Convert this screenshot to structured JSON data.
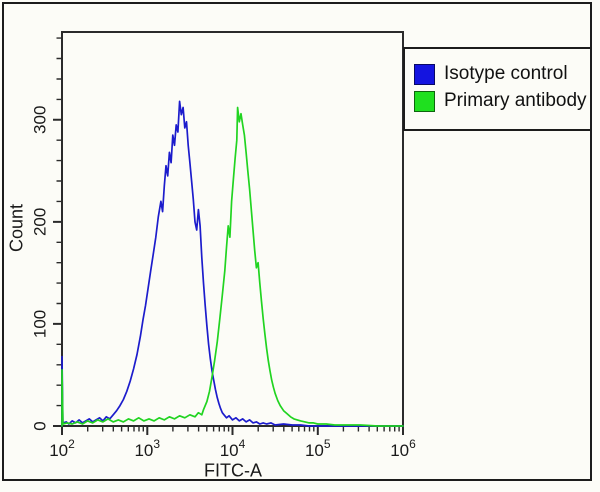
{
  "chart_data": {
    "type": "line",
    "title": "",
    "xlabel": "FITC-A",
    "ylabel": "Count",
    "grid": false,
    "legend_position": "top-right-outside",
    "x_axis": {
      "scale": "log10",
      "min_exponent": 2,
      "max_exponent": 6,
      "tick_label_base": "10",
      "tick_exponents": [
        2,
        3,
        4,
        5,
        6
      ]
    },
    "y_axis": {
      "min": 0,
      "max": 386,
      "major_tick_interval": 100,
      "minor_tick_interval": 20,
      "major_tick_labels": [
        "0",
        "100",
        "200",
        "300"
      ]
    },
    "series": [
      {
        "name": "Isotype control",
        "color": "#1c1ccc",
        "peak": {
          "x_log10": 3.38,
          "count": 318
        },
        "points": [
          [
            2.0,
            0
          ],
          [
            2.0,
            68
          ],
          [
            2.01,
            3
          ],
          [
            2.05,
            4
          ],
          [
            2.08,
            2
          ],
          [
            2.12,
            5
          ],
          [
            2.16,
            3
          ],
          [
            2.2,
            6
          ],
          [
            2.24,
            3
          ],
          [
            2.28,
            5
          ],
          [
            2.32,
            7
          ],
          [
            2.36,
            4
          ],
          [
            2.4,
            6
          ],
          [
            2.44,
            8
          ],
          [
            2.48,
            5
          ],
          [
            2.52,
            9
          ],
          [
            2.56,
            7
          ],
          [
            2.6,
            11
          ],
          [
            2.64,
            15
          ],
          [
            2.68,
            20
          ],
          [
            2.72,
            26
          ],
          [
            2.76,
            34
          ],
          [
            2.8,
            44
          ],
          [
            2.84,
            56
          ],
          [
            2.88,
            70
          ],
          [
            2.92,
            88
          ],
          [
            2.95,
            104
          ],
          [
            2.98,
            118
          ],
          [
            3.01,
            135
          ],
          [
            3.04,
            152
          ],
          [
            3.07,
            168
          ],
          [
            3.1,
            185
          ],
          [
            3.13,
            205
          ],
          [
            3.16,
            220
          ],
          [
            3.18,
            210
          ],
          [
            3.2,
            235
          ],
          [
            3.22,
            255
          ],
          [
            3.24,
            245
          ],
          [
            3.26,
            268
          ],
          [
            3.28,
            258
          ],
          [
            3.3,
            285
          ],
          [
            3.32,
            275
          ],
          [
            3.34,
            295
          ],
          [
            3.36,
            288
          ],
          [
            3.38,
            318
          ],
          [
            3.4,
            305
          ],
          [
            3.42,
            312
          ],
          [
            3.44,
            292
          ],
          [
            3.46,
            298
          ],
          [
            3.48,
            275
          ],
          [
            3.5,
            258
          ],
          [
            3.52,
            240
          ],
          [
            3.54,
            222
          ],
          [
            3.56,
            200
          ],
          [
            3.58,
            192
          ],
          [
            3.6,
            212
          ],
          [
            3.62,
            196
          ],
          [
            3.64,
            165
          ],
          [
            3.66,
            140
          ],
          [
            3.68,
            118
          ],
          [
            3.7,
            98
          ],
          [
            3.72,
            80
          ],
          [
            3.74,
            66
          ],
          [
            3.76,
            54
          ],
          [
            3.78,
            45
          ],
          [
            3.8,
            36
          ],
          [
            3.82,
            28
          ],
          [
            3.84,
            22
          ],
          [
            3.86,
            17
          ],
          [
            3.88,
            13
          ],
          [
            3.9,
            11
          ],
          [
            3.93,
            8
          ],
          [
            3.96,
            10
          ],
          [
            4.0,
            6
          ],
          [
            4.04,
            8
          ],
          [
            4.08,
            5
          ],
          [
            4.12,
            7
          ],
          [
            4.16,
            4
          ],
          [
            4.2,
            6
          ],
          [
            4.24,
            3
          ],
          [
            4.28,
            4
          ],
          [
            4.32,
            2
          ],
          [
            4.36,
            3
          ],
          [
            4.4,
            2
          ],
          [
            4.45,
            3
          ],
          [
            4.5,
            1
          ],
          [
            4.6,
            2
          ],
          [
            4.7,
            1
          ],
          [
            4.8,
            1
          ],
          [
            4.9,
            0
          ],
          [
            5.2,
            0
          ],
          [
            6.0,
            0
          ]
        ]
      },
      {
        "name": "Primary antibody",
        "color": "#21d421",
        "peak": {
          "x_log10": 4.06,
          "count": 312
        },
        "points": [
          [
            2.0,
            0
          ],
          [
            2.0,
            55
          ],
          [
            2.01,
            2
          ],
          [
            2.06,
            3
          ],
          [
            2.12,
            2
          ],
          [
            2.18,
            4
          ],
          [
            2.24,
            2
          ],
          [
            2.3,
            5
          ],
          [
            2.36,
            3
          ],
          [
            2.42,
            6
          ],
          [
            2.48,
            4
          ],
          [
            2.54,
            7
          ],
          [
            2.6,
            4
          ],
          [
            2.66,
            6
          ],
          [
            2.72,
            4
          ],
          [
            2.78,
            7
          ],
          [
            2.84,
            5
          ],
          [
            2.9,
            8
          ],
          [
            2.96,
            5
          ],
          [
            3.02,
            7
          ],
          [
            3.08,
            5
          ],
          [
            3.14,
            8
          ],
          [
            3.2,
            6
          ],
          [
            3.26,
            9
          ],
          [
            3.32,
            7
          ],
          [
            3.38,
            10
          ],
          [
            3.44,
            8
          ],
          [
            3.5,
            11
          ],
          [
            3.56,
            9
          ],
          [
            3.6,
            13
          ],
          [
            3.64,
            11
          ],
          [
            3.66,
            16
          ],
          [
            3.7,
            24
          ],
          [
            3.73,
            34
          ],
          [
            3.76,
            48
          ],
          [
            3.79,
            64
          ],
          [
            3.82,
            82
          ],
          [
            3.85,
            104
          ],
          [
            3.88,
            128
          ],
          [
            3.91,
            152
          ],
          [
            3.93,
            175
          ],
          [
            3.95,
            196
          ],
          [
            3.97,
            185
          ],
          [
            3.99,
            220
          ],
          [
            4.01,
            242
          ],
          [
            4.03,
            262
          ],
          [
            4.05,
            280
          ],
          [
            4.06,
            312
          ],
          [
            4.08,
            298
          ],
          [
            4.1,
            306
          ],
          [
            4.12,
            295
          ],
          [
            4.14,
            285
          ],
          [
            4.16,
            268
          ],
          [
            4.18,
            250
          ],
          [
            4.2,
            232
          ],
          [
            4.22,
            212
          ],
          [
            4.24,
            192
          ],
          [
            4.26,
            172
          ],
          [
            4.28,
            155
          ],
          [
            4.3,
            160
          ],
          [
            4.32,
            140
          ],
          [
            4.34,
            122
          ],
          [
            4.36,
            105
          ],
          [
            4.38,
            90
          ],
          [
            4.4,
            76
          ],
          [
            4.42,
            64
          ],
          [
            4.44,
            54
          ],
          [
            4.46,
            45
          ],
          [
            4.48,
            38
          ],
          [
            4.5,
            32
          ],
          [
            4.53,
            25
          ],
          [
            4.56,
            20
          ],
          [
            4.6,
            15
          ],
          [
            4.64,
            12
          ],
          [
            4.68,
            9
          ],
          [
            4.72,
            7
          ],
          [
            4.76,
            6
          ],
          [
            4.8,
            5
          ],
          [
            4.85,
            4
          ],
          [
            4.9,
            3
          ],
          [
            4.95,
            3
          ],
          [
            5.0,
            2
          ],
          [
            5.1,
            2
          ],
          [
            5.2,
            1
          ],
          [
            5.35,
            1
          ],
          [
            5.5,
            1
          ],
          [
            5.7,
            0
          ],
          [
            6.0,
            0
          ]
        ]
      }
    ]
  },
  "legend": {
    "entries": [
      {
        "label": "Isotype control",
        "swatch_color": "#1414e0"
      },
      {
        "label": "Primary antibody",
        "swatch_color": "#1fe01f"
      }
    ]
  },
  "frame": {
    "border_color": "#1c1c1c",
    "axis_color": "#2b2b2b",
    "text_color": "#1a1a1a",
    "background_color": "#fcfcf7"
  }
}
